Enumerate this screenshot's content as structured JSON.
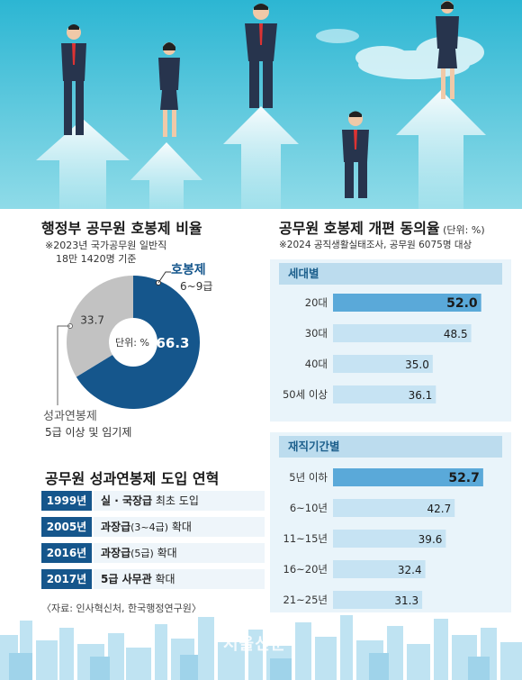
{
  "pie": {
    "title": "행정부 공무원 호봉제 비율",
    "note_line1": "※2023년 국가공무원 일반직",
    "note_line2": "18만 1420명 기준",
    "center_label": "단위: %",
    "hobong_label": "호봉제",
    "hobong_sub": "6~9급",
    "perf_label": "성과연봉제",
    "perf_sub": "5급 이상 및 임기제",
    "colors": {
      "hobong": "#15568c",
      "perf": "#c2c2c2"
    }
  },
  "timeline": {
    "title": "공무원 성과연봉제 도입 연혁",
    "rows": [
      {
        "year": "1999년",
        "bold": "실 · 국장급",
        "paren": "",
        "rest": " 최초 도입"
      },
      {
        "year": "2005년",
        "bold": "과장급",
        "paren": "(3~4급)",
        "rest": " 확대"
      },
      {
        "year": "2016년",
        "bold": "과장급",
        "paren": "(5급)",
        "rest": " 확대"
      },
      {
        "year": "2017년",
        "bold": "5급 사무관",
        "paren": "",
        "rest": " 확대"
      }
    ],
    "source": "〈자료: 인사혁신처, 한국행정연구원〉"
  },
  "survey": {
    "title": "공무원 호봉제 개편 동의율",
    "unit": " (단위: %)",
    "note": "※2024 공직생활실태조사, 공무원 6075명 대상"
  },
  "watermark": "서울신문",
  "chart_data": [
    {
      "type": "pie",
      "title": "행정부 공무원 호봉제 비율",
      "labels": [
        "호봉제",
        "성과연봉제"
      ],
      "values": [
        66.3,
        33.7
      ]
    },
    {
      "type": "bar",
      "title": "세대별",
      "categories": [
        "20대",
        "30대",
        "40대",
        "50세 이상"
      ],
      "values": [
        52.0,
        48.5,
        35.0,
        36.1
      ],
      "value_labels": [
        "52.0",
        "48.5",
        "35.0",
        "36.1"
      ],
      "xlim": [
        0,
        60
      ],
      "highlight_index": 0
    },
    {
      "type": "bar",
      "title": "재직기간별",
      "categories": [
        "5년 이하",
        "6~10년",
        "11~15년",
        "16~20년",
        "21~25년"
      ],
      "values": [
        52.7,
        42.7,
        39.6,
        32.4,
        31.3
      ],
      "value_labels": [
        "52.7",
        "42.7",
        "39.6",
        "32.4",
        "31.3"
      ],
      "xlim": [
        0,
        60
      ],
      "highlight_index": 0
    }
  ]
}
